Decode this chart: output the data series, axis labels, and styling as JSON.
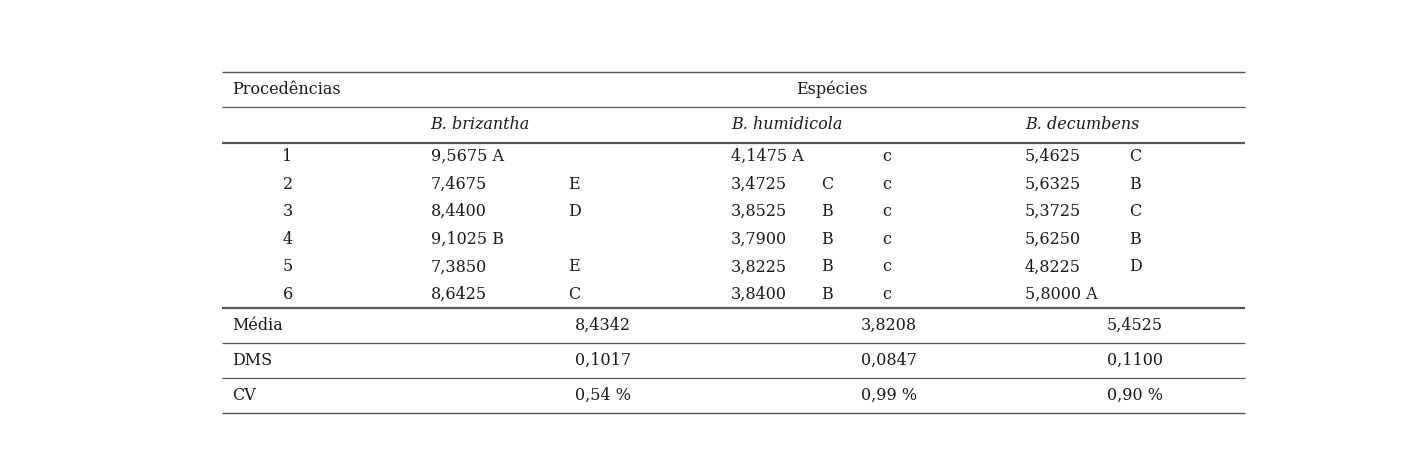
{
  "header1": "Procedências",
  "header2": "Espécies",
  "subheaders": [
    "B. brizantha",
    "B. humidicola",
    "B. decumbens"
  ],
  "data_rows": [
    {
      "proc": "1",
      "bb": "9,5675 A",
      "bh_val": "4,1475 A",
      "bh_letter": "c",
      "bd": "5,4625",
      "bd_letter": "C"
    },
    {
      "proc": "2",
      "bb": "7,4675",
      "bb_letter": "E",
      "bh_val": "3,4725",
      "bh_mid": "C",
      "bh_letter": "c",
      "bd": "5,6325",
      "bd_letter": "B"
    },
    {
      "proc": "3",
      "bb": "8,4400",
      "bb_letter": "D",
      "bh_val": "3,8525",
      "bh_mid": "B",
      "bh_letter": "c",
      "bd": "5,3725",
      "bd_letter": "C"
    },
    {
      "proc": "4",
      "bb": "9,1025 B",
      "bh_val": "3,7900",
      "bh_mid": "B",
      "bh_letter": "c",
      "bd": "5,6250",
      "bd_letter": "B"
    },
    {
      "proc": "5",
      "bb": "7,3850",
      "bb_letter": "E",
      "bh_val": "3,8225",
      "bh_mid": "B",
      "bh_letter": "c",
      "bd": "4,8225",
      "bd_letter": "D"
    },
    {
      "proc": "6",
      "bb": "8,6425",
      "bb_letter": "C",
      "bh_val": "3,8400",
      "bh_mid": "B",
      "bh_letter": "c",
      "bd": "5,8000 A"
    }
  ],
  "footer_rows": [
    [
      "Média",
      "8,4342",
      "3,8208",
      "5,4525"
    ],
    [
      "DMS",
      "0,1017",
      "0,0847",
      "0,1100"
    ],
    [
      "CV",
      "0,54 %",
      "0,99 %",
      "0,90 %"
    ]
  ],
  "bg_color": "#ffffff",
  "text_color": "#1a1a1a",
  "line_color": "#555555",
  "font_size": 11.5
}
